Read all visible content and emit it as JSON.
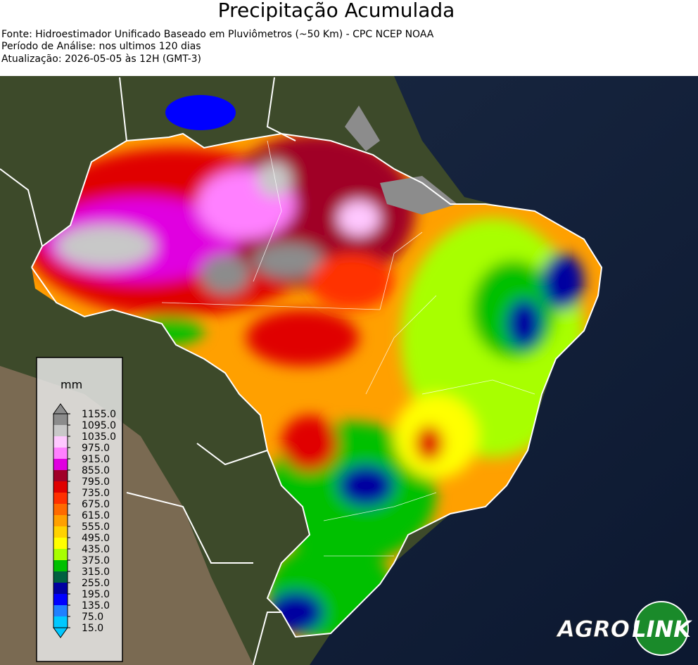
{
  "header": {
    "title": "Precipitação Acumulada",
    "lines": [
      "Fonte: Hidroestimador Unificado Baseado em Pluviômetros (~50 Km) - CPC NCEP NOAA",
      "Período de Análise: nos ultimos 120 dias",
      "Atualização: 2026-05-05 às 12H (GMT-3)"
    ]
  },
  "legend": {
    "unit": "mm",
    "ticks": [
      {
        "value": 1155,
        "label": "1155.0"
      },
      {
        "value": 1095,
        "label": "1095.0"
      },
      {
        "value": 1035,
        "label": "1035.0"
      },
      {
        "value": 975,
        "label": "975.0"
      },
      {
        "value": 915,
        "label": "915.0"
      },
      {
        "value": 855,
        "label": "855.0"
      },
      {
        "value": 795,
        "label": "795.0"
      },
      {
        "value": 735,
        "label": "735.0"
      },
      {
        "value": 675,
        "label": "675.0"
      },
      {
        "value": 615,
        "label": "615.0"
      },
      {
        "value": 555,
        "label": "555.0"
      },
      {
        "value": 495,
        "label": "495.0"
      },
      {
        "value": 435,
        "label": "435.0"
      },
      {
        "value": 375,
        "label": "375.0"
      },
      {
        "value": 315,
        "label": "315.0"
      },
      {
        "value": 255,
        "label": "255.0"
      },
      {
        "value": 195,
        "label": "195.0"
      },
      {
        "value": 135,
        "label": "135.0"
      },
      {
        "value": 75,
        "label": "75.0"
      },
      {
        "value": 15,
        "label": "15.0"
      }
    ],
    "colors": [
      "#8c8c8c",
      "#c8c8c8",
      "#ffc8ff",
      "#ff80ff",
      "#e000e0",
      "#a00028",
      "#e00000",
      "#ff3000",
      "#ff6a00",
      "#ffa000",
      "#ffd200",
      "#ffff00",
      "#a8ff00",
      "#00c000",
      "#006040",
      "#0000a0",
      "#0000ff",
      "#2080ff",
      "#00c8ff"
    ]
  },
  "logo": {
    "left": "AGRO",
    "right": "LINK"
  }
}
